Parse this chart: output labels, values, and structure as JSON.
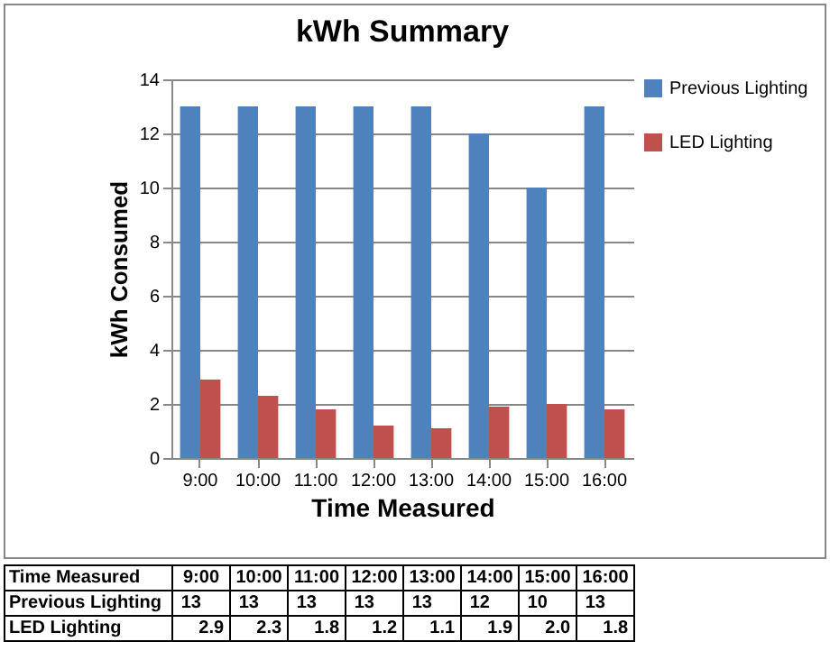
{
  "chart_data": {
    "type": "bar",
    "title": "kWh Summary",
    "xlabel": "Time Measured",
    "ylabel": "kWh Consumed",
    "categories": [
      "9:00",
      "10:00",
      "11:00",
      "12:00",
      "13:00",
      "14:00",
      "15:00",
      "16:00"
    ],
    "series": [
      {
        "name": "Previous Lighting",
        "color": "#4f81bd",
        "values": [
          13,
          13,
          13,
          13,
          13,
          12,
          10,
          13
        ],
        "value_labels": [
          "13",
          "13",
          "13",
          "13",
          "13",
          "12",
          "10",
          "13"
        ]
      },
      {
        "name": "LED Lighting",
        "color": "#c0504d",
        "values": [
          2.9,
          2.3,
          1.8,
          1.2,
          1.1,
          1.9,
          2.0,
          1.8
        ],
        "value_labels": [
          "2.9",
          "2.3",
          "1.8",
          "1.2",
          "1.1",
          "1.9",
          "2.0",
          "1.8"
        ]
      }
    ],
    "ylim": [
      0,
      14
    ],
    "yticks": [
      0,
      2,
      4,
      6,
      8,
      10,
      12,
      14
    ],
    "grid": "y",
    "legend": "right"
  }
}
